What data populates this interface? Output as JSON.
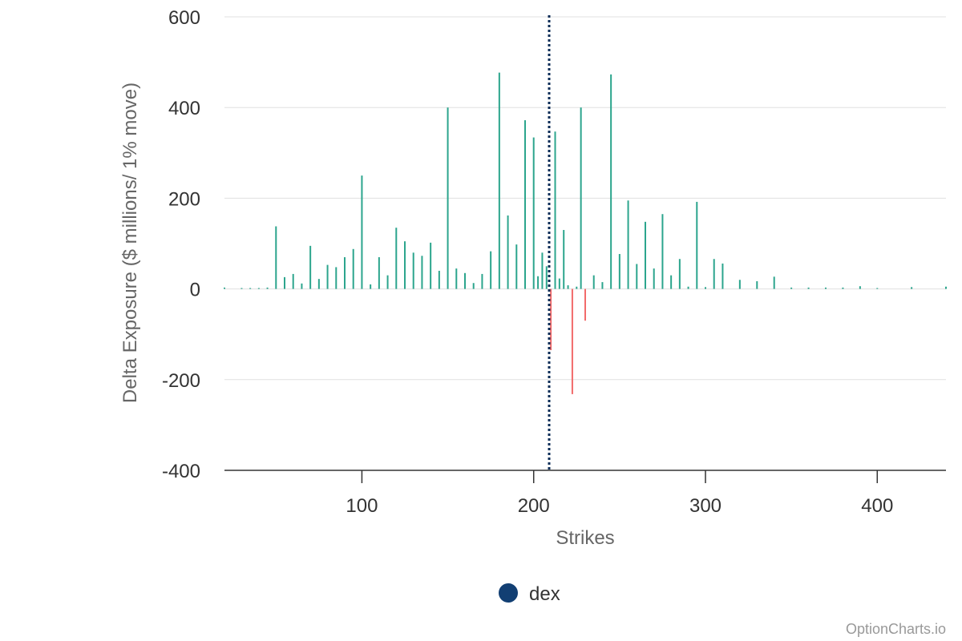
{
  "chart_data": {
    "type": "bar",
    "xlabel": "Strikes",
    "ylabel": "Delta Exposure ($ millions/ 1% move)",
    "xlim": [
      20,
      440
    ],
    "ylim": [
      -400,
      600
    ],
    "x_ticks": [
      100,
      200,
      300,
      400
    ],
    "y_ticks": [
      -400,
      -200,
      0,
      200,
      400,
      600
    ],
    "grid": true,
    "legend_position": "bottom-center",
    "reference_line_x": 209,
    "colors": {
      "positive": "#2ca58d",
      "negative": "#f26b6b",
      "reference_line": "#0c2d57",
      "legend_marker": "#123f73",
      "grid": "#e0e0e0",
      "axis": "#333333"
    },
    "series": [
      {
        "name": "dex",
        "x": [
          20,
          30,
          35,
          40,
          45,
          50,
          55,
          60,
          65,
          70,
          75,
          80,
          85,
          90,
          95,
          100,
          105,
          110,
          115,
          120,
          125,
          130,
          135,
          140,
          145,
          150,
          155,
          160,
          165,
          170,
          175,
          180,
          185,
          190,
          195,
          200,
          202.5,
          205,
          207.5,
          210,
          212.5,
          215,
          217.5,
          220,
          222.5,
          225,
          227.5,
          230,
          235,
          240,
          245,
          250,
          255,
          260,
          265,
          270,
          275,
          280,
          285,
          290,
          295,
          300,
          305,
          310,
          320,
          330,
          340,
          350,
          360,
          370,
          380,
          390,
          400,
          420,
          440
        ],
        "values": [
          3,
          2,
          2,
          2,
          3,
          138,
          26,
          33,
          12,
          95,
          22,
          53,
          48,
          70,
          88,
          250,
          10,
          70,
          30,
          135,
          105,
          80,
          73,
          102,
          40,
          400,
          45,
          35,
          13,
          33,
          83,
          477,
          162,
          98,
          372,
          334,
          28,
          80,
          50,
          -135,
          347,
          23,
          130,
          8,
          -232,
          5,
          400,
          -70,
          30,
          15,
          473,
          77,
          195,
          55,
          148,
          45,
          165,
          30,
          66,
          5,
          192,
          4,
          66,
          56,
          20,
          17,
          27,
          3,
          3,
          3,
          3,
          6,
          2,
          4,
          5
        ]
      }
    ]
  },
  "legend": {
    "label": "dex"
  },
  "credit": "OptionCharts.io"
}
